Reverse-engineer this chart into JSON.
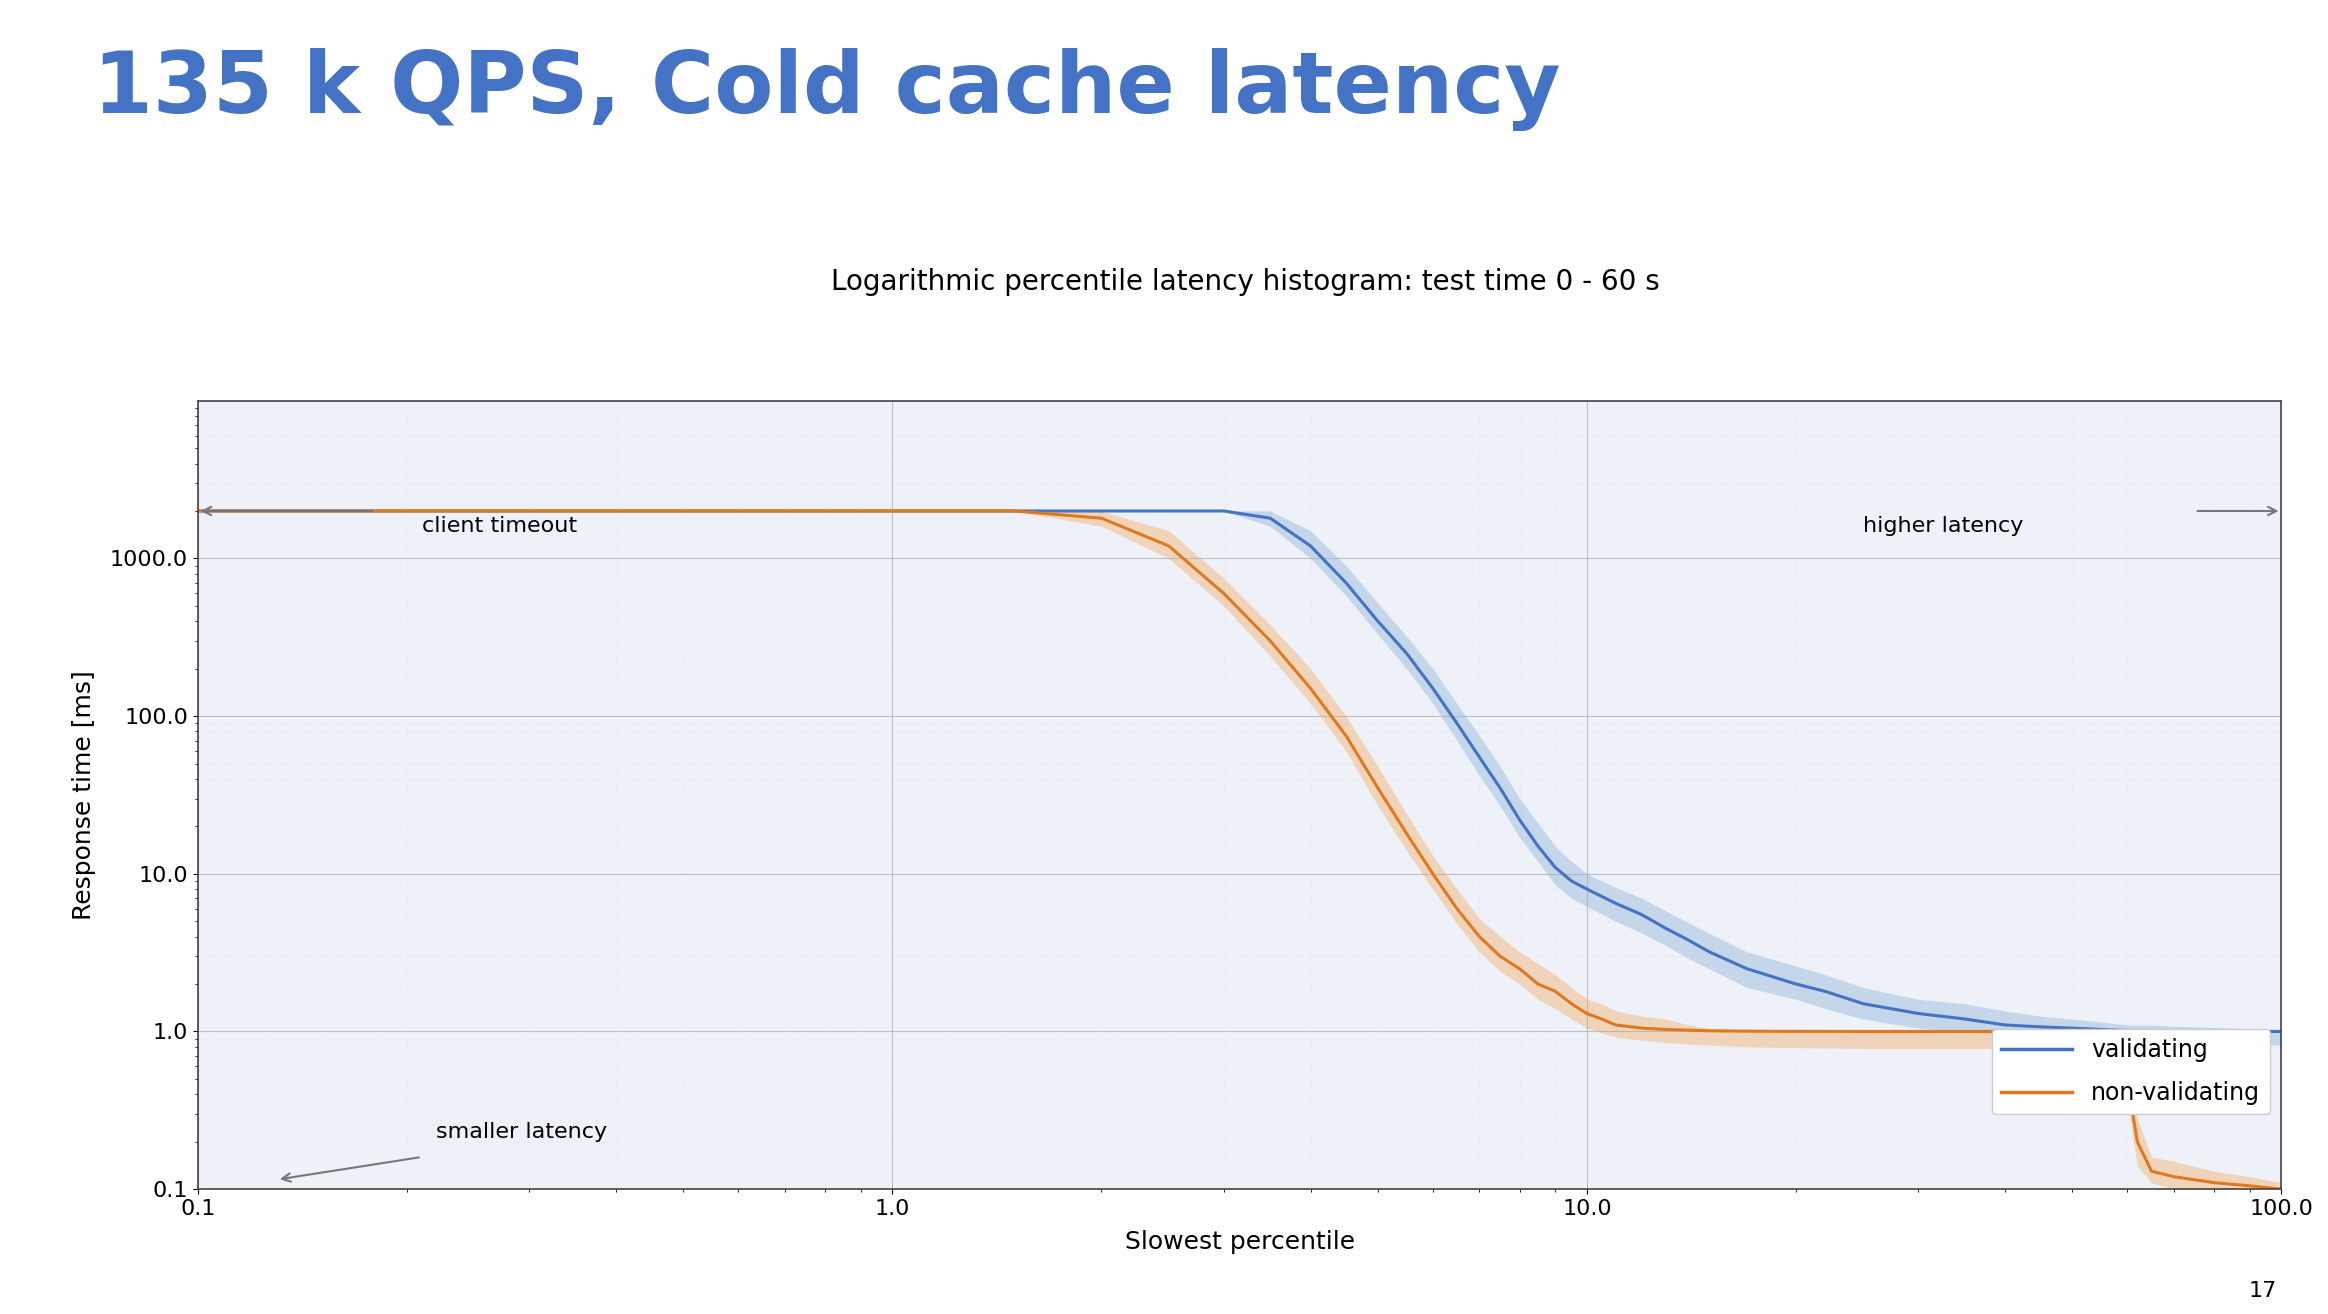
{
  "title_main": "135 k QPS, Cold cache latency",
  "title_sub": "Logarithmic percentile latency histogram: test time 0 - 60 s",
  "xlabel": "Slowest percentile",
  "ylabel": "Response time [ms]",
  "xlim": [
    0.1,
    100.0
  ],
  "ylim": [
    0.1,
    10000.0
  ],
  "title_color": "#4472C4",
  "title_fontsize": 62,
  "subtitle_fontsize": 20,
  "background_color": "#ffffff",
  "plot_bg_color": "#eef2f8",
  "grid_major_color": "#aaaaaa",
  "grid_minor_color": "#cccccc",
  "annotation_client_timeout": "client timeout",
  "annotation_higher_latency": "higher latency",
  "annotation_smaller_latency": "smaller latency",
  "validating_color": "#4472C4",
  "nonvalidating_color": "#E07820",
  "validating_fill_color": "#a8c4e0",
  "nonvalidating_fill_color": "#f0c090",
  "legend_validating": "validating",
  "legend_nonvalidating": "non-validating",
  "slide_number": "17",
  "top_bar_color": "#4472C4",
  "val_x": [
    0.1,
    0.2,
    0.5,
    1.0,
    1.5,
    2.0,
    2.5,
    3.0,
    3.5,
    4.0,
    4.5,
    5.0,
    5.5,
    6.0,
    6.5,
    7.0,
    7.5,
    8.0,
    8.5,
    9.0,
    9.5,
    10.0,
    11.0,
    12.0,
    13.0,
    14.0,
    15.0,
    17.0,
    20.0,
    22.0,
    25.0,
    30.0,
    35.0,
    40.0,
    45.0,
    50.0,
    55.0,
    58.0,
    60.0,
    65.0,
    70.0,
    80.0,
    90.0,
    95.0,
    100.0
  ],
  "val_y": [
    2000,
    2000,
    2000,
    2000,
    2000,
    2000,
    2000,
    2000,
    1800,
    1200,
    700,
    400,
    250,
    150,
    90,
    55,
    35,
    22,
    15,
    11,
    9.0,
    8.0,
    6.5,
    5.5,
    4.5,
    3.8,
    3.2,
    2.5,
    2.0,
    1.8,
    1.5,
    1.3,
    1.2,
    1.1,
    1.07,
    1.05,
    1.03,
    1.02,
    1.01,
    1.01,
    1.005,
    1.002,
    1.001,
    1.001,
    1.0
  ],
  "val_y_lo": [
    2000,
    2000,
    2000,
    2000,
    2000,
    2000,
    2000,
    2000,
    1600,
    1000,
    580,
    330,
    200,
    120,
    70,
    42,
    27,
    17,
    12,
    8.5,
    7.0,
    6.2,
    5.0,
    4.2,
    3.5,
    2.9,
    2.5,
    1.9,
    1.6,
    1.4,
    1.2,
    1.05,
    1.0,
    0.95,
    0.92,
    0.9,
    0.88,
    0.87,
    0.86,
    0.86,
    0.85,
    0.84,
    0.83,
    0.82,
    0.82
  ],
  "val_y_hi": [
    2000,
    2000,
    2000,
    2000,
    2000,
    2000,
    2000,
    2000,
    2000,
    1500,
    900,
    520,
    320,
    200,
    120,
    75,
    48,
    30,
    21,
    15,
    12,
    10,
    8.2,
    7.0,
    5.8,
    4.9,
    4.2,
    3.2,
    2.6,
    2.3,
    1.9,
    1.6,
    1.5,
    1.35,
    1.25,
    1.2,
    1.15,
    1.12,
    1.1,
    1.1,
    1.08,
    1.06,
    1.04,
    1.03,
    1.02
  ],
  "nv_x": [
    0.1,
    0.2,
    0.5,
    1.0,
    1.5,
    2.0,
    2.5,
    3.0,
    3.5,
    4.0,
    4.5,
    5.0,
    5.5,
    6.0,
    6.5,
    7.0,
    7.5,
    8.0,
    8.5,
    9.0,
    9.5,
    10.0,
    10.5,
    11.0,
    12.0,
    13.0,
    14.0,
    15.0,
    17.0,
    20.0,
    25.0,
    30.0,
    40.0,
    50.0,
    55.0,
    57.0,
    58.0,
    59.0,
    60.0,
    62.0,
    65.0,
    70.0,
    80.0,
    90.0,
    100.0
  ],
  "nv_y": [
    2000,
    2000,
    2000,
    2000,
    2000,
    1800,
    1200,
    600,
    300,
    150,
    75,
    35,
    18,
    10,
    6.0,
    4.0,
    3.0,
    2.5,
    2.0,
    1.8,
    1.5,
    1.3,
    1.2,
    1.1,
    1.05,
    1.03,
    1.02,
    1.01,
    1.005,
    1.002,
    1.001,
    1.001,
    1.001,
    1.001,
    1.001,
    1.001,
    1.0,
    0.9,
    0.5,
    0.2,
    0.13,
    0.12,
    0.11,
    0.105,
    0.1
  ],
  "nv_y_lo": [
    2000,
    2000,
    2000,
    2000,
    2000,
    1600,
    1000,
    500,
    240,
    120,
    60,
    27,
    14,
    8.0,
    4.8,
    3.2,
    2.4,
    2.0,
    1.6,
    1.4,
    1.2,
    1.05,
    0.98,
    0.92,
    0.88,
    0.85,
    0.83,
    0.82,
    0.8,
    0.79,
    0.78,
    0.78,
    0.78,
    0.78,
    0.78,
    0.78,
    0.77,
    0.7,
    0.35,
    0.14,
    0.11,
    0.1,
    0.1,
    0.1,
    0.1
  ],
  "nv_y_hi": [
    2000,
    2000,
    2000,
    2000,
    2000,
    2000,
    1500,
    750,
    380,
    200,
    100,
    48,
    24,
    13,
    8.0,
    5.2,
    4.0,
    3.2,
    2.7,
    2.3,
    1.9,
    1.6,
    1.5,
    1.35,
    1.25,
    1.2,
    1.1,
    1.05,
    1.02,
    1.01,
    1.005,
    1.003,
    1.002,
    1.002,
    1.002,
    1.002,
    1.001,
    1.1,
    0.65,
    0.28,
    0.16,
    0.15,
    0.13,
    0.12,
    0.11
  ]
}
